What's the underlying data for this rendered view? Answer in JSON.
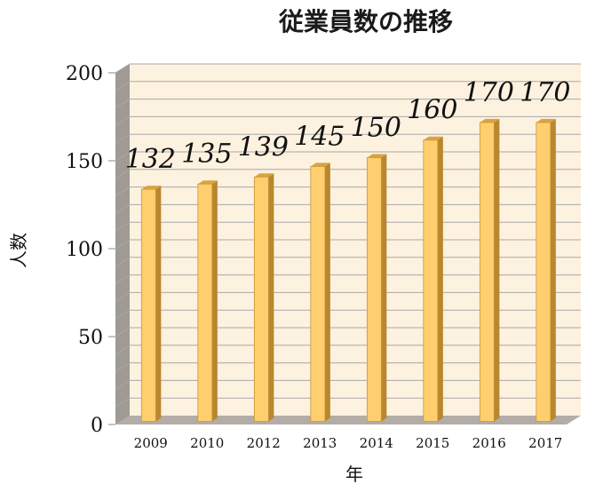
{
  "chart_data": {
    "type": "bar",
    "title": "従業員数の推移",
    "xlabel": "年",
    "ylabel": "人数",
    "categories": [
      "2009",
      "2010",
      "2012",
      "2013",
      "2014",
      "2015",
      "2016",
      "2017"
    ],
    "values": [
      132,
      135,
      139,
      145,
      150,
      160,
      170,
      170
    ],
    "data_labels": [
      "132",
      "135",
      "139",
      "145",
      "150",
      "160",
      "170",
      "170"
    ],
    "ylim": [
      0,
      200
    ],
    "yticks": [
      "0",
      "50",
      "100",
      "150",
      "200"
    ],
    "grid": true,
    "style": "3d-column",
    "colors": {
      "bar_front": "#ffce6e",
      "bar_side": "#b8872e",
      "bar_top": "#d9a440",
      "plot_back": "#fdf2df",
      "left_wall": "#a09a94",
      "floor": "#b4aca6"
    }
  }
}
